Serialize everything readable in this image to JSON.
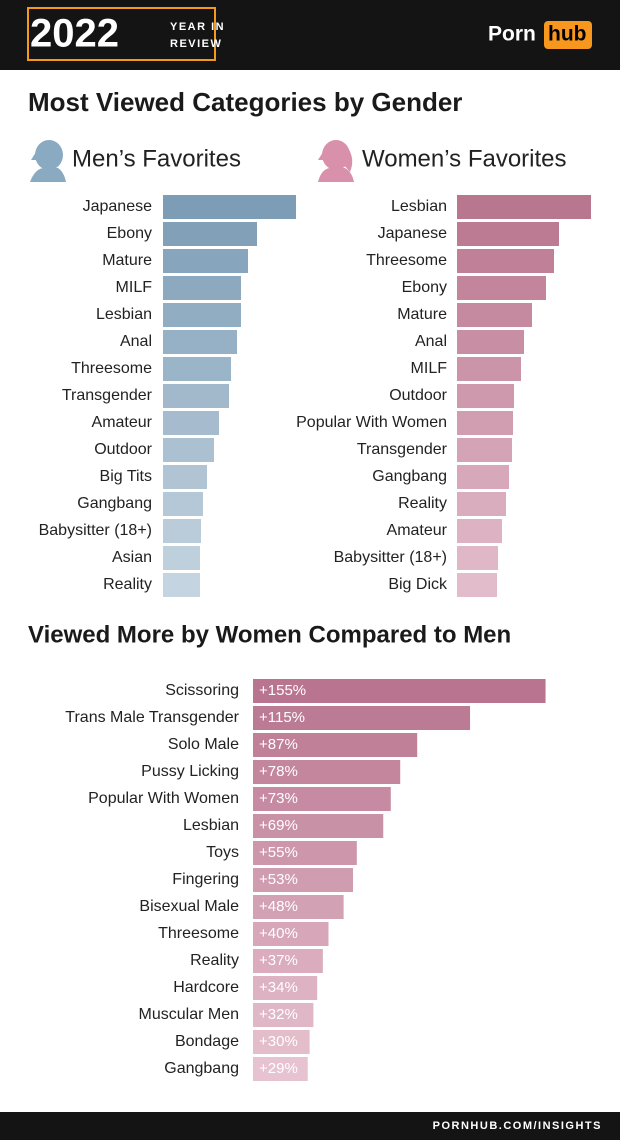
{
  "header": {
    "year": "2022",
    "tagline_1": "YEAR IN",
    "tagline_2": "REVIEW",
    "logo_1": "Porn",
    "logo_2": "hub"
  },
  "title": "Most Viewed Categories by Gender",
  "footer": "PORNHUB.COM/INSIGHTS",
  "chart_data": [
    {
      "type": "bar",
      "orientation": "horizontal",
      "title": "Men’s Favorites",
      "categories": [
        "Japanese",
        "Ebony",
        "Mature",
        "MILF",
        "Lesbian",
        "Anal",
        "Threesome",
        "Transgender",
        "Amateur",
        "Outdoor",
        "Big Tits",
        "Gangbang",
        "Babysitter (18+)",
        "Asian",
        "Reality"
      ],
      "values": [
        133,
        94,
        85,
        78,
        78,
        74,
        68,
        66,
        56,
        51,
        44,
        40,
        38,
        37,
        37
      ],
      "xlim": [
        0,
        140
      ],
      "colors": [
        "#7d9db6",
        "#c4d4e0"
      ]
    },
    {
      "type": "bar",
      "orientation": "horizontal",
      "title": "Women’s Favorites",
      "categories": [
        "Lesbian",
        "Japanese",
        "Threesome",
        "Ebony",
        "Mature",
        "Anal",
        "MILF",
        "Outdoor",
        "Popular With Women",
        "Transgender",
        "Gangbang",
        "Reality",
        "Amateur",
        "Babysitter (18+)",
        "Big Dick"
      ],
      "values": [
        134,
        102,
        97,
        89,
        75,
        67,
        64,
        57,
        56,
        55,
        52,
        49,
        45,
        41,
        40
      ],
      "xlim": [
        0,
        140
      ],
      "colors": [
        "#b9768f",
        "#e3bccb"
      ]
    },
    {
      "type": "bar",
      "orientation": "horizontal",
      "title": "Viewed More by Women Compared to Men",
      "categories": [
        "Scissoring",
        "Trans Male Transgender",
        "Solo Male",
        "Pussy Licking",
        "Popular With Women",
        "Lesbian",
        "Toys",
        "Fingering",
        "Bisexual Male",
        "Threesome",
        "Reality",
        "Hardcore",
        "Muscular Men",
        "Bondage",
        "Gangbang"
      ],
      "values": [
        155,
        115,
        87,
        78,
        73,
        69,
        55,
        53,
        48,
        40,
        37,
        34,
        32,
        30,
        29
      ],
      "value_labels": [
        "+155%",
        "+115%",
        "+87%",
        "+78%",
        "+73%",
        "+69%",
        "+55%",
        "+53%",
        "+48%",
        "+40%",
        "+37%",
        "+34%",
        "+32%",
        "+30%",
        "+29%"
      ],
      "xlim": [
        0,
        160
      ],
      "colors": [
        "#b9758f",
        "#e7c2d0"
      ]
    }
  ]
}
